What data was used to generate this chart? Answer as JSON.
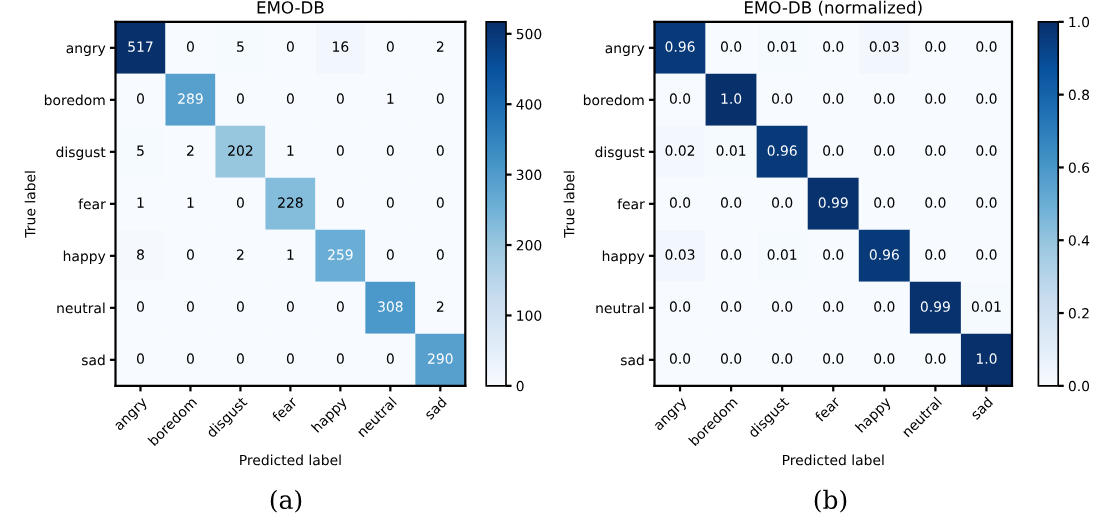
{
  "chart_data": [
    {
      "type": "heatmap",
      "title": "EMO-DB",
      "xlabel": "Predicted label",
      "ylabel": "True label",
      "categories": [
        "angry",
        "boredom",
        "disgust",
        "fear",
        "happy",
        "neutral",
        "sad"
      ],
      "y_categories": [
        "angry",
        "boredom",
        "disgust",
        "fear",
        "happy",
        "neutral",
        "sad"
      ],
      "cells": [
        [
          517,
          0,
          5,
          0,
          16,
          0,
          2
        ],
        [
          0,
          289,
          0,
          0,
          0,
          1,
          0
        ],
        [
          5,
          2,
          202,
          1,
          0,
          0,
          0
        ],
        [
          1,
          1,
          0,
          228,
          0,
          0,
          0
        ],
        [
          8,
          0,
          2,
          1,
          259,
          0,
          0
        ],
        [
          0,
          0,
          0,
          0,
          0,
          308,
          2
        ],
        [
          0,
          0,
          0,
          0,
          0,
          0,
          290
        ]
      ],
      "data_labels": true,
      "clim": [
        0,
        517
      ],
      "cticks": [
        0,
        100,
        200,
        300,
        400,
        500
      ],
      "annotations": [
        "(a)"
      ]
    },
    {
      "type": "heatmap",
      "title": "EMO-DB (normalized)",
      "xlabel": "Predicted label",
      "ylabel": "True label",
      "categories": [
        "angry",
        "boredom",
        "disgust",
        "fear",
        "happy",
        "neutral",
        "sad"
      ],
      "y_categories": [
        "angry",
        "boredom",
        "disgust",
        "fear",
        "happy",
        "neutral",
        "sad"
      ],
      "cells": [
        [
          0.96,
          0,
          0.01,
          0,
          0.03,
          0,
          0
        ],
        [
          0,
          1,
          0,
          0,
          0,
          0,
          0
        ],
        [
          0.02,
          0.01,
          0.96,
          0,
          0,
          0,
          0
        ],
        [
          0,
          0,
          0,
          0.99,
          0,
          0,
          0
        ],
        [
          0.03,
          0,
          0.01,
          0,
          0.96,
          0,
          0
        ],
        [
          0,
          0,
          0,
          0,
          0,
          0.99,
          0.01
        ],
        [
          0,
          0,
          0,
          0,
          0,
          0,
          1
        ]
      ],
      "cell_labels": [
        [
          "0.96",
          "0.0",
          "0.01",
          "0.0",
          "0.03",
          "0.0",
          "0.0"
        ],
        [
          "0.0",
          "1.0",
          "0.0",
          "0.0",
          "0.0",
          "0.0",
          "0.0"
        ],
        [
          "0.02",
          "0.01",
          "0.96",
          "0.0",
          "0.0",
          "0.0",
          "0.0"
        ],
        [
          "0.0",
          "0.0",
          "0.0",
          "0.99",
          "0.0",
          "0.0",
          "0.0"
        ],
        [
          "0.03",
          "0.0",
          "0.01",
          "0.0",
          "0.96",
          "0.0",
          "0.0"
        ],
        [
          "0.0",
          "0.0",
          "0.0",
          "0.0",
          "0.0",
          "0.99",
          "0.01"
        ],
        [
          "0.0",
          "0.0",
          "0.0",
          "0.0",
          "0.0",
          "0.0",
          "1.0"
        ]
      ],
      "clim": [
        0,
        1
      ],
      "cticks": [
        {
          "value": 0,
          "label": "0.0"
        },
        {
          "value": 0.2,
          "label": "0.2"
        },
        {
          "value": 0.4,
          "label": "0.4"
        },
        {
          "value": 0.6,
          "label": "0.6"
        },
        {
          "value": 0.8,
          "label": "0.8"
        },
        {
          "value": 1,
          "label": "1.0"
        }
      ],
      "annotations": [
        "(b)"
      ]
    }
  ]
}
